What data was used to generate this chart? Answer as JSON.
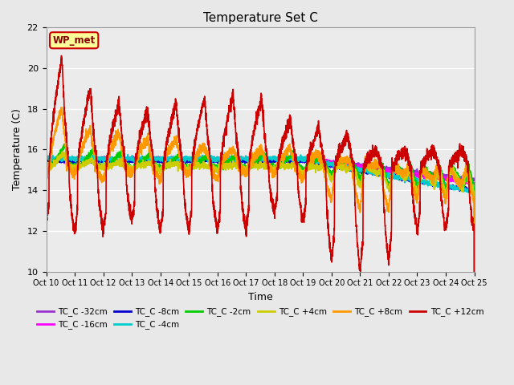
{
  "title": "Temperature Set C",
  "xlabel": "Time",
  "ylabel": "Temperature (C)",
  "ylim": [
    10,
    22
  ],
  "yticks": [
    10,
    12,
    14,
    16,
    18,
    20,
    22
  ],
  "xlim_days": 15,
  "background_color": "#e8e8e8",
  "plot_bg_color": "#ebebeb",
  "grid_color": "#ffffff",
  "series": [
    {
      "label": "TC_C -32cm",
      "color": "#9933cc",
      "lw": 1.2
    },
    {
      "label": "TC_C -16cm",
      "color": "#ff00ff",
      "lw": 1.2
    },
    {
      "label": "TC_C -8cm",
      "color": "#0000cc",
      "lw": 1.2
    },
    {
      "label": "TC_C -4cm",
      "color": "#00cccc",
      "lw": 1.2
    },
    {
      "label": "TC_C -2cm",
      "color": "#00cc00",
      "lw": 1.2
    },
    {
      "label": "TC_C +4cm",
      "color": "#cccc00",
      "lw": 1.2
    },
    {
      "label": "TC_C +8cm",
      "color": "#ff9900",
      "lw": 1.2
    },
    {
      "label": "TC_C +12cm",
      "color": "#cc0000",
      "lw": 1.2
    }
  ],
  "wp_met_box_facecolor": "#ffff99",
  "wp_met_box_edgecolor": "#cc0000",
  "wp_met_text_color": "#880000",
  "xtick_labels": [
    "Oct 10",
    "Oct 11",
    "Oct 12",
    "Oct 13",
    "Oct 14",
    "Oct 15",
    "Oct 16",
    "Oct 17",
    "Oct 18",
    "Oct 19",
    "Oct 20",
    "Oct 21",
    "Oct 22",
    "Oct 23",
    "Oct 24",
    "Oct 25"
  ],
  "legend_order": [
    "TC_C -32cm",
    "TC_C -16cm",
    "TC_C -8cm",
    "TC_C -4cm",
    "TC_C -2cm",
    "TC_C +4cm",
    "TC_C +8cm",
    "TC_C +12cm"
  ]
}
